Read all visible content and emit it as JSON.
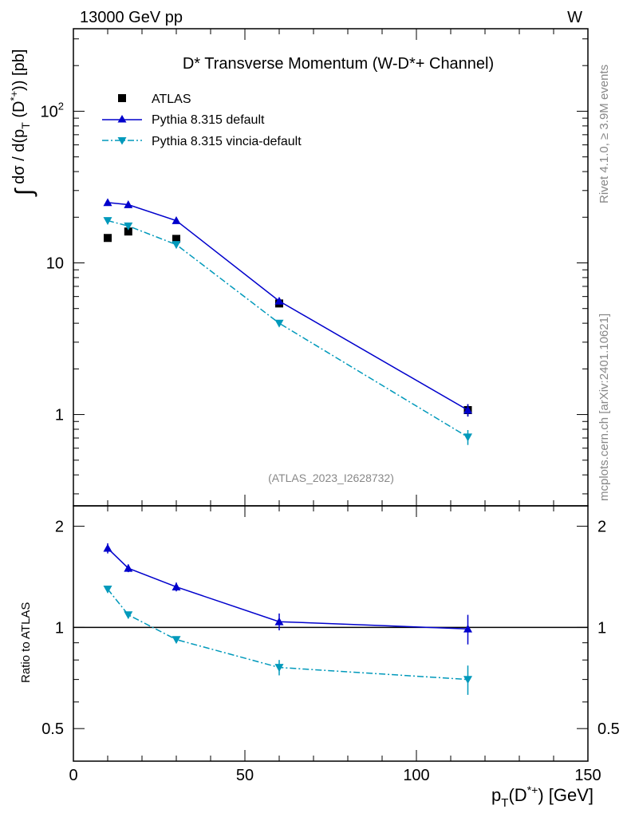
{
  "header": {
    "energy_label": "13000 GeV pp",
    "process_label": "W"
  },
  "side_notes": {
    "rivet": "Rivet 4.1.0, ≥ 3.9M events",
    "mcplots": "mcplots.cern.ch [arXiv:2401.10621]"
  },
  "colors": {
    "atlas": "#000000",
    "pythia_default": "#0000cc",
    "pythia_vincia": "#0099bb",
    "ref_id": "#888888"
  },
  "chart_data": [
    {
      "type": "line",
      "panel": "main",
      "title": "D* Transverse Momentum (W-D*+ Channel)",
      "ylabel": "∫ dσ / d(p_T (D*+)) [pb]",
      "ylabel_parts": {
        "integral": "∫",
        "main": "dσ / d(p",
        "sub": "T",
        "mid": " (D",
        "sup": "*+",
        "end": ")) [pb]"
      },
      "yscale": "log",
      "ylim": [
        0.25,
        350
      ],
      "yticks": [
        1,
        10,
        100
      ],
      "ytick_labels": [
        "1",
        "10",
        "10²"
      ],
      "xlim": [
        0,
        150
      ],
      "reference_label": "(ATLAS_2023_I2628732)",
      "legend_position": "top-left",
      "series": [
        {
          "name": "ATLAS",
          "marker": "square",
          "x": [
            10,
            16,
            30,
            60,
            115
          ],
          "y": [
            14.6,
            16.1,
            14.4,
            5.4,
            1.07
          ],
          "yerr": [
            0.4,
            0.4,
            0.4,
            0.25,
            0.1
          ]
        },
        {
          "name": "Pythia 8.315 default",
          "marker": "triangle-up",
          "line": "solid",
          "x": [
            10,
            16,
            30,
            60,
            115
          ],
          "y": [
            25.0,
            24.2,
            19.0,
            5.6,
            1.07
          ],
          "yerr": [
            0.5,
            0.5,
            0.4,
            0.2,
            0.1
          ]
        },
        {
          "name": "Pythia 8.315 vincia-default",
          "marker": "triangle-down",
          "line": "dashdot",
          "x": [
            10,
            16,
            30,
            60,
            115
          ],
          "y": [
            19.0,
            17.5,
            13.2,
            4.0,
            0.71
          ],
          "yerr": [
            0.4,
            0.4,
            0.3,
            0.15,
            0.08
          ]
        }
      ]
    },
    {
      "type": "line",
      "panel": "ratio",
      "ylabel": "Ratio to ATLAS",
      "yscale": "log",
      "ylim": [
        0.4,
        2.3
      ],
      "yticks": [
        0.5,
        1,
        2
      ],
      "ytick_labels": [
        "0.5",
        "1",
        "2"
      ],
      "xlim": [
        0,
        150
      ],
      "xticks": [
        0,
        50,
        100,
        150
      ],
      "xtick_labels": [
        "0",
        "50",
        "100",
        "150"
      ],
      "xlabel": "p_T(D*+) [GeV]",
      "xlabel_parts": {
        "main": "p",
        "sub": "T",
        "mid": "(D",
        "sup": "*+",
        "end": ") [GeV]"
      },
      "series": [
        {
          "name": "Pythia 8.315 default",
          "x": [
            10,
            16,
            30,
            60,
            115
          ],
          "y": [
            1.72,
            1.5,
            1.32,
            1.04,
            0.99
          ],
          "yerr": [
            0.06,
            0.04,
            0.04,
            0.06,
            0.1
          ]
        },
        {
          "name": "Pythia 8.315 vincia-default",
          "x": [
            10,
            16,
            30,
            60,
            115
          ],
          "y": [
            1.3,
            1.09,
            0.92,
            0.76,
            0.7
          ],
          "yerr": [
            0.03,
            0.02,
            0.02,
            0.04,
            0.07
          ]
        }
      ]
    }
  ]
}
